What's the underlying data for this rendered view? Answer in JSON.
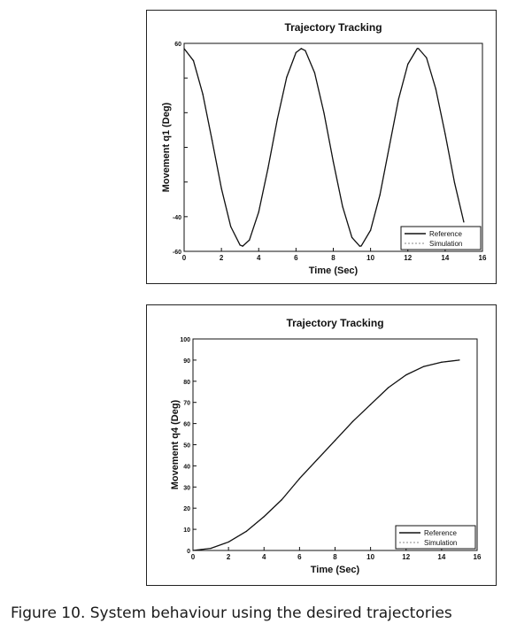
{
  "caption": "Figure 10. System behaviour using the desired trajectories",
  "chart_data": [
    {
      "type": "line",
      "title": "Trajectory Tracking",
      "xlabel": "Time (Sec)",
      "ylabel": "Movement q1 (Deg)",
      "xlim": [
        0,
        16
      ],
      "ylim": [
        -60,
        60
      ],
      "x_ticks": [
        "0",
        "2",
        "4",
        "6",
        "8",
        "10",
        "12",
        "14",
        "16"
      ],
      "y_ticks": [
        "-60",
        "-40",
        "",
        "",
        "",
        "",
        "60"
      ],
      "grid": false,
      "legend_position": "bottom-right",
      "function": "57*cos(t)",
      "x": [
        0,
        0.5,
        1,
        1.5,
        2,
        2.5,
        3,
        3.14,
        3.5,
        4,
        4.5,
        5,
        5.5,
        6,
        6.28,
        6.5,
        7,
        7.5,
        8,
        8.5,
        9,
        9.42,
        9.5,
        10,
        10.5,
        11,
        11.5,
        12,
        12.5,
        12.57,
        13,
        13.5,
        14,
        14.5,
        15
      ],
      "series": [
        {
          "name": "Reference",
          "color": "#111111",
          "values": [
            57,
            50,
            30.8,
            4,
            -23.7,
            -45.7,
            -56.4,
            -57,
            -53.5,
            -37.3,
            -12,
            16.2,
            40.4,
            54.7,
            57,
            55.8,
            43,
            19.9,
            -8.3,
            -34.2,
            -52,
            -57,
            -56.9,
            -47.8,
            -27.5,
            0.2,
            27.8,
            48,
            57,
            57,
            51.7,
            33.6,
            7.8,
            -20.2,
            -43.1
          ]
        },
        {
          "name": "Simulation",
          "color": "#888888",
          "values": [
            57,
            50,
            30.8,
            4,
            -23.7,
            -45.7,
            -56.4,
            -57,
            -53.5,
            -37.3,
            -12,
            16.2,
            40.4,
            54.7,
            57,
            55.8,
            43,
            19.9,
            -8.3,
            -34.2,
            -52,
            -57,
            -56.9,
            -47.8,
            -27.5,
            0.2,
            27.8,
            48,
            57,
            57,
            51.7,
            33.6,
            7.8,
            -20.2,
            -43.1
          ]
        }
      ]
    },
    {
      "type": "line",
      "title": "Trajectory Tracking",
      "xlabel": "Time (Sec)",
      "ylabel": "Movement q4 (Deg)",
      "xlim": [
        0,
        16
      ],
      "ylim": [
        0,
        100
      ],
      "x_ticks": [
        "0",
        "2",
        "4",
        "6",
        "8",
        "10",
        "12",
        "14",
        "16"
      ],
      "y_ticks": [
        "0",
        "10",
        "20",
        "30",
        "40",
        "50",
        "60",
        "70",
        "80",
        "90",
        "100"
      ],
      "grid": false,
      "legend_position": "bottom-right",
      "x": [
        0,
        1,
        2,
        3,
        4,
        5,
        6,
        7,
        8,
        9,
        10,
        11,
        12,
        13,
        14,
        15
      ],
      "series": [
        {
          "name": "Reference",
          "color": "#111111",
          "values": [
            0,
            1,
            4,
            9,
            16,
            24,
            34,
            43,
            52,
            61,
            69,
            77,
            83,
            87,
            89,
            90
          ]
        },
        {
          "name": "Simulation",
          "color": "#888888",
          "values": [
            0,
            1,
            4,
            9,
            16,
            24,
            34,
            43,
            52,
            61,
            69,
            77,
            83,
            87,
            89,
            90
          ]
        }
      ]
    }
  ]
}
